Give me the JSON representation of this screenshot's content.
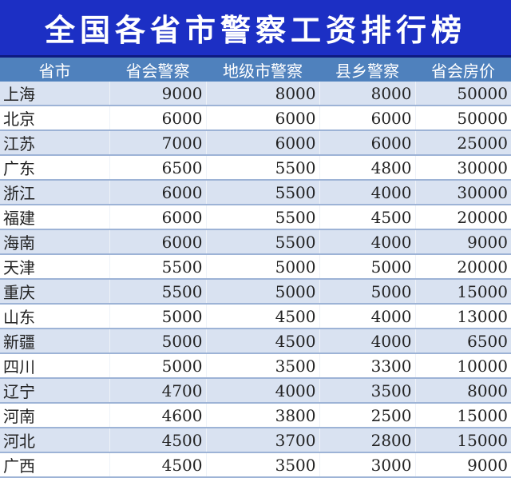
{
  "title": "全国各省市警察工资排行榜",
  "colors": {
    "title_bg": "#1c2fc4",
    "header_bg": "#4f81bd",
    "alt_row": "#d9e2f1"
  },
  "chart_data": {
    "type": "table",
    "columns": [
      "省市",
      "省会警察",
      "地级市警察",
      "县乡警察",
      "省会房价"
    ],
    "rows": [
      [
        "上海",
        "9000",
        "8000",
        "8000",
        "50000"
      ],
      [
        "北京",
        "6000",
        "6000",
        "6000",
        "50000"
      ],
      [
        "江苏",
        "7000",
        "6000",
        "6000",
        "25000"
      ],
      [
        "广东",
        "6500",
        "5500",
        "4800",
        "30000"
      ],
      [
        "浙江",
        "6000",
        "5500",
        "4000",
        "30000"
      ],
      [
        "福建",
        "6000",
        "5500",
        "4500",
        "20000"
      ],
      [
        "海南",
        "6000",
        "5500",
        "4000",
        "9000"
      ],
      [
        "天津",
        "5500",
        "5000",
        "5000",
        "20000"
      ],
      [
        "重庆",
        "5500",
        "5000",
        "5000",
        "15000"
      ],
      [
        "山东",
        "5000",
        "4500",
        "4000",
        "13000"
      ],
      [
        "新疆",
        "5000",
        "4500",
        "4000",
        "6500"
      ],
      [
        "四川",
        "5000",
        "3500",
        "3300",
        "10000"
      ],
      [
        "辽宁",
        "4700",
        "4000",
        "3500",
        "8000"
      ],
      [
        "河南",
        "4600",
        "3800",
        "2500",
        "15000"
      ],
      [
        "河北",
        "4500",
        "3700",
        "2800",
        "15000"
      ],
      [
        "广西",
        "4500",
        "3500",
        "3000",
        "9000"
      ]
    ]
  }
}
